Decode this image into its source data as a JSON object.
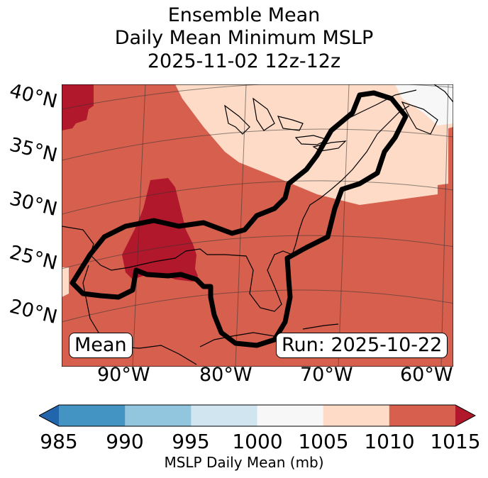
{
  "title": {
    "line1": "Ensemble Mean",
    "line2": "Daily Mean Minimum MSLP",
    "line3": "2025-11-02 12z-12z"
  },
  "lat_labels": [
    "40°N",
    "35°N",
    "30°N",
    "25°N",
    "20°N"
  ],
  "lon_labels": [
    "90°W",
    "80°W",
    "70°W",
    "60°W"
  ],
  "mean_label": "Mean",
  "run_label": "Run: 2025-10-22",
  "colorbar": {
    "label": "MSLP Daily Mean (mb)",
    "ticks": [
      "985",
      "990",
      "995",
      "1000",
      "1005",
      "1010",
      "1015"
    ],
    "bins": [
      {
        "range": [
          980,
          985
        ],
        "color": "#2166ac"
      },
      {
        "range": [
          985,
          990
        ],
        "color": "#4393c3"
      },
      {
        "range": [
          990,
          995
        ],
        "color": "#92c5de"
      },
      {
        "range": [
          995,
          1000
        ],
        "color": "#d1e5f0"
      },
      {
        "range": [
          1000,
          1005
        ],
        "color": "#f7f7f7"
      },
      {
        "range": [
          1005,
          1010
        ],
        "color": "#fddbc7"
      },
      {
        "range": [
          1010,
          1015
        ],
        "color": "#d6604d"
      },
      {
        "range": [
          1015,
          1020
        ],
        "color": "#b2182b"
      }
    ],
    "extend": "both"
  },
  "map_regions": [
    {
      "name": "1015-plus",
      "color": "#b2182b"
    },
    {
      "name": "1010-1015",
      "color": "#d6604d"
    },
    {
      "name": "1005-1010",
      "color": "#fddbc7"
    },
    {
      "name": "1000-1005",
      "color": "#f7f7f7"
    }
  ],
  "contour_color": "#000000"
}
